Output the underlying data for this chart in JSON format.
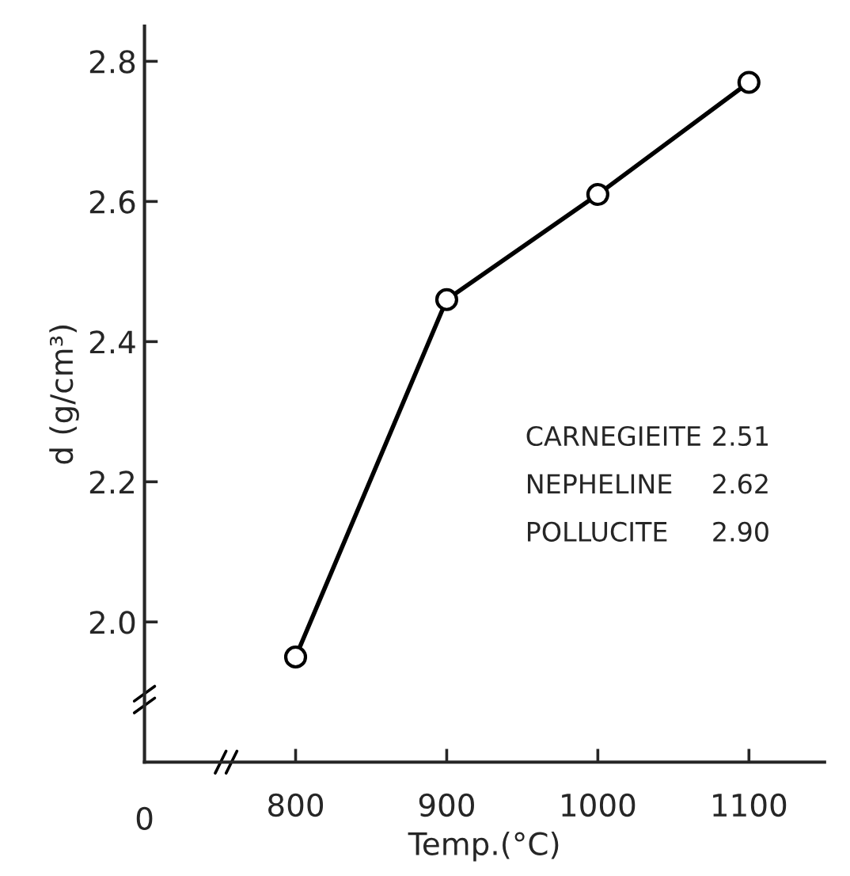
{
  "chart_data": {
    "type": "line",
    "xlabel": "Temp.(°C)",
    "ylabel": "d (g/cm³)",
    "x": [
      800,
      900,
      1000,
      1100
    ],
    "series": [
      {
        "color": "#000000",
        "values": [
          1.95,
          2.46,
          2.61,
          2.77
        ]
      }
    ],
    "xlim": [
      700,
      1150
    ],
    "xticks": [
      800,
      900,
      1000,
      1100
    ],
    "ylim": [
      1.8,
      2.85
    ],
    "yticks": [
      {
        "value": 2.0,
        "label": "2.0"
      },
      2.2,
      2.4,
      2.6,
      2.8
    ],
    "marker": "circle",
    "line_style": "solid",
    "grid": false,
    "legend": false,
    "annotations": [
      "0",
      "CARNEGIEITE",
      "2.51",
      "NEPHELINE",
      "2.62",
      "POLLUCITE",
      "2.90"
    ]
  }
}
